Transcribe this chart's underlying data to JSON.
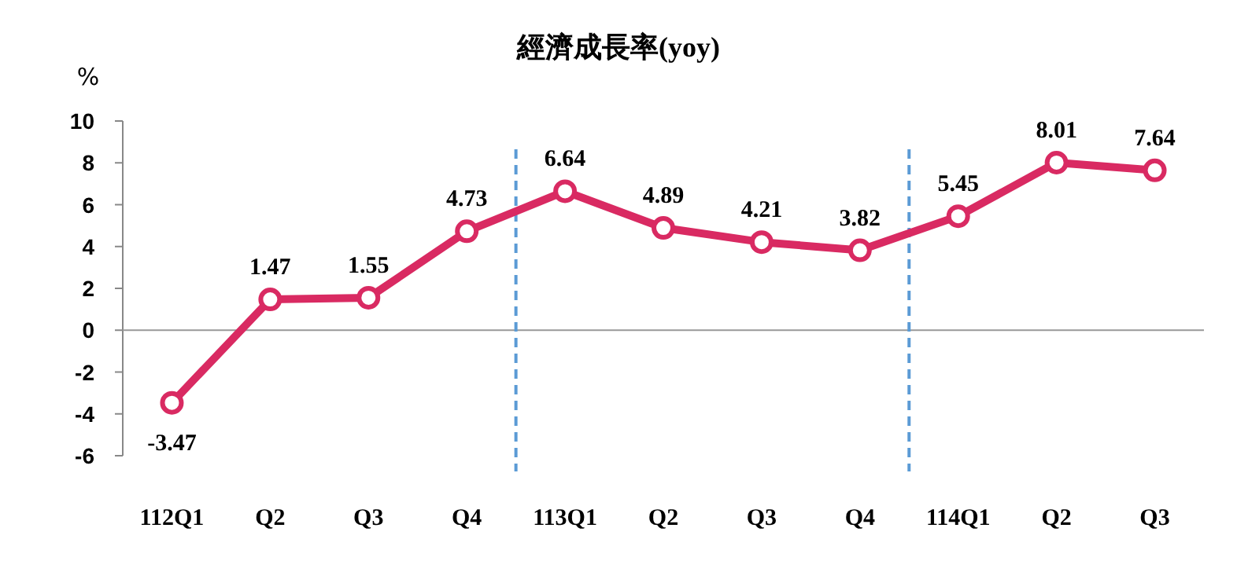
{
  "chart_data": {
    "type": "line",
    "title": "經濟成長率(yoy)",
    "ylabel": "%",
    "categories": [
      "112Q1",
      "Q2",
      "Q3",
      "Q4",
      "113Q1",
      "Q2",
      "Q3",
      "Q4",
      "114Q1",
      "Q2",
      "Q3"
    ],
    "series": [
      {
        "color": "#d92a62",
        "values": [
          -3.47,
          1.47,
          1.55,
          4.73,
          6.64,
          4.89,
          4.21,
          3.82,
          5.45,
          8.01,
          7.64
        ]
      }
    ],
    "ylim": [
      -6,
      10
    ],
    "yticks": [
      -6,
      -4,
      -2,
      0,
      2,
      4,
      6,
      8,
      10
    ],
    "data_labels": true,
    "marker": "circle",
    "line_style": "solid",
    "grid": false
  }
}
